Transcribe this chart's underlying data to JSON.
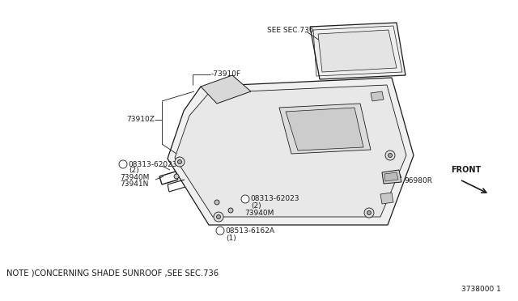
{
  "bg_color": "#ffffff",
  "line_color": "#1a1a1a",
  "fig_width": 6.4,
  "fig_height": 3.72,
  "note_text": "NOTE ）CONCERNING SHADE SUNROOF，SEE SEC.736",
  "note_text2": "NOTE )CONCERNING SHADE SUNROOF ,SEE SEC.736",
  "ref_number": "3738000 1",
  "labels": {
    "see_sec": "SEE SEC.736",
    "part_73910F": "-73910F",
    "part_73910Z": "73910Z",
    "part_08313_top": "08313-62023",
    "part_qty_top": "(2)",
    "part_73940M_top": "73940M",
    "part_73941N": "73941N",
    "part_08313_bot": "08313-62023",
    "part_qty_bot": "(2)",
    "part_73940M_bot": "73940M",
    "part_08513": "08513-6162A",
    "part_08513_qty": "(1)",
    "part_96980R": "96980R",
    "front_label": "FRONT"
  },
  "font_size_small": 6.5,
  "font_size_note": 7.2
}
